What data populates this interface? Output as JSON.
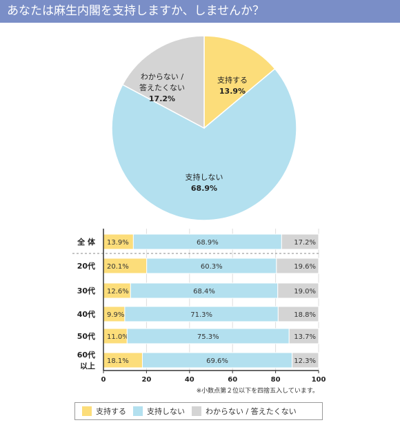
{
  "title": "あなたは麻生内閣を支持しますか、しませんか？",
  "colors": {
    "support": "#fcdd7a",
    "oppose": "#b3e0ef",
    "unknown": "#d4d4d4",
    "title_bg": "#7a8ec7"
  },
  "chart_data": [
    {
      "type": "pie",
      "slices": [
        {
          "name": "支持する",
          "value": 13.9,
          "label": "13.9%",
          "color": "#fcdd7a"
        },
        {
          "name": "支持しない",
          "value": 68.9,
          "label": "68.9%",
          "color": "#b3e0ef"
        },
        {
          "name": "わからない / 答えたくない",
          "name_lines": [
            "わからない /",
            "答えたくない"
          ],
          "value": 17.2,
          "label": "17.2%",
          "color": "#d4d4d4"
        }
      ]
    },
    {
      "type": "bar",
      "orientation": "horizontal",
      "stacked": true,
      "categories": [
        "全 体",
        "20代",
        "30代",
        "40代",
        "50代",
        "60代\n以上"
      ],
      "series": [
        {
          "name": "支持する",
          "color": "#fcdd7a",
          "values": [
            13.9,
            20.1,
            12.6,
            9.9,
            11.0,
            18.1
          ],
          "labels": [
            "13.9%",
            "20.1%",
            "12.6%",
            "9.9%",
            "11.0%",
            "18.1%"
          ]
        },
        {
          "name": "支持しない",
          "color": "#b3e0ef",
          "values": [
            68.9,
            60.3,
            68.4,
            71.3,
            75.3,
            69.6
          ],
          "labels": [
            "68.9%",
            "60.3%",
            "68.4%",
            "71.3%",
            "75.3%",
            "69.6%"
          ]
        },
        {
          "name": "わからない / 答えたくない",
          "color": "#d4d4d4",
          "values": [
            17.2,
            19.6,
            19.0,
            18.8,
            13.7,
            12.3
          ],
          "labels": [
            "17.2%",
            "19.6%",
            "19.0%",
            "18.8%",
            "13.7%",
            "12.3%"
          ]
        }
      ],
      "xlim": [
        0,
        100
      ],
      "xticks": [
        0,
        20,
        40,
        60,
        80,
        100
      ],
      "grid": true,
      "note": "※小数点第２位以下を四捨五入しています。"
    }
  ],
  "legend": [
    {
      "label": "支持する",
      "color": "#fcdd7a"
    },
    {
      "label": "支持しない",
      "color": "#b3e0ef"
    },
    {
      "label": "わからない / 答えたくない",
      "color": "#d4d4d4"
    }
  ]
}
